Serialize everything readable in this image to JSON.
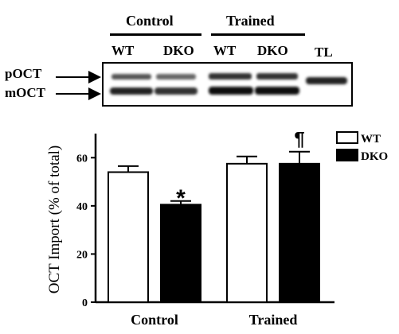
{
  "blot": {
    "groups": [
      "Control",
      "Trained"
    ],
    "lanes": [
      "WT",
      "DKO",
      "WT",
      "DKO",
      "TL"
    ],
    "band_labels": [
      "pOCT",
      "mOCT"
    ]
  },
  "chart_data": {
    "type": "bar",
    "categories": [
      "Control",
      "Trained"
    ],
    "series": [
      {
        "name": "WT",
        "values": [
          54,
          57.5
        ],
        "errors": [
          2.5,
          3.0
        ],
        "fill": "#ffffff"
      },
      {
        "name": "DKO",
        "values": [
          40.5,
          57.5
        ],
        "errors": [
          1.5,
          5.0
        ],
        "fill": "#000000"
      }
    ],
    "ylabel": "OCT Import (% of total)",
    "ylim": [
      0,
      70
    ],
    "yticks": [
      0,
      20,
      40,
      60
    ],
    "grid": false,
    "legend": "top-right",
    "annotations": [
      {
        "category": "Control",
        "series": "DKO",
        "text": "*"
      },
      {
        "category": "Trained",
        "series": "DKO",
        "text": "¶"
      }
    ]
  }
}
